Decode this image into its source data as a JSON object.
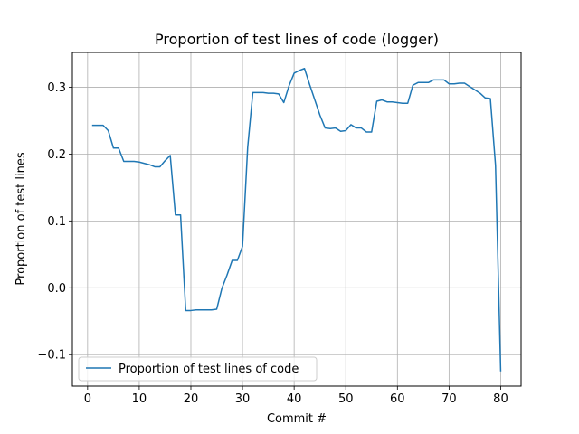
{
  "chart_data": {
    "type": "line",
    "title": "Proportion of test lines of code (logger)",
    "xlabel": "Commit #",
    "ylabel": "Proportion of test lines",
    "xlim": [
      -2.95,
      83.95
    ],
    "ylim": [
      -0.147,
      0.352
    ],
    "xticks": [
      0,
      10,
      20,
      30,
      40,
      50,
      60,
      70,
      80
    ],
    "yticks": [
      -0.1,
      0.0,
      0.1,
      0.2,
      0.3
    ],
    "xtick_labels": [
      "0",
      "10",
      "20",
      "30",
      "40",
      "50",
      "60",
      "70",
      "80"
    ],
    "ytick_labels": [
      "−0.1",
      "0.0",
      "0.1",
      "0.2",
      "0.3"
    ],
    "grid": true,
    "legend_position": "lower-left",
    "series": [
      {
        "name": "Proportion of test lines of code",
        "color": "#1f77b4",
        "x": [
          1,
          2,
          3,
          4,
          5,
          6,
          7,
          8,
          9,
          10,
          11,
          12,
          13,
          14,
          15,
          16,
          17,
          18,
          19,
          20,
          21,
          22,
          23,
          24,
          25,
          26,
          27,
          28,
          29,
          30,
          31,
          32,
          33,
          34,
          35,
          36,
          37,
          38,
          39,
          40,
          41,
          42,
          43,
          44,
          45,
          46,
          47,
          48,
          49,
          50,
          51,
          52,
          53,
          54,
          55,
          56,
          57,
          58,
          59,
          60,
          61,
          62,
          63,
          64,
          65,
          66,
          67,
          68,
          69,
          70,
          71,
          72,
          73,
          74,
          75,
          76,
          77,
          78,
          79,
          80
        ],
        "y": [
          0.243,
          0.243,
          0.243,
          0.235,
          0.209,
          0.209,
          0.189,
          0.189,
          0.189,
          0.188,
          0.186,
          0.184,
          0.181,
          0.181,
          0.19,
          0.198,
          0.109,
          0.109,
          -0.034,
          -0.034,
          -0.033,
          -0.033,
          -0.033,
          -0.033,
          -0.032,
          -0.001,
          0.019,
          0.041,
          0.041,
          0.062,
          0.21,
          0.292,
          0.292,
          0.292,
          0.291,
          0.291,
          0.29,
          0.277,
          0.302,
          0.321,
          0.325,
          0.328,
          0.304,
          0.281,
          0.258,
          0.239,
          0.238,
          0.239,
          0.234,
          0.235,
          0.244,
          0.239,
          0.239,
          0.233,
          0.233,
          0.279,
          0.281,
          0.278,
          0.278,
          0.277,
          0.276,
          0.276,
          0.303,
          0.307,
          0.307,
          0.307,
          0.311,
          0.311,
          0.311,
          0.305,
          0.305,
          0.306,
          0.306,
          0.301,
          0.296,
          0.291,
          0.284,
          0.283,
          0.183,
          -0.124
        ]
      }
    ]
  }
}
